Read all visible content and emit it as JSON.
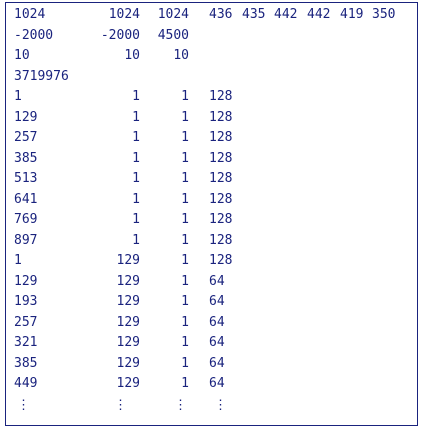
{
  "header": {
    "row1": [
      "1024",
      "1024",
      "1024",
      "436",
      "435",
      "442",
      "442",
      "419",
      "350"
    ],
    "row2": [
      "-2000",
      "-2000",
      "4500"
    ],
    "row3": [
      "10",
      "10",
      "10"
    ],
    "row4": "3719976"
  },
  "rows": [
    [
      "1",
      "1",
      "1",
      "128"
    ],
    [
      "129",
      "1",
      "1",
      "128"
    ],
    [
      "257",
      "1",
      "1",
      "128"
    ],
    [
      "385",
      "1",
      "1",
      "128"
    ],
    [
      "513",
      "1",
      "1",
      "128"
    ],
    [
      "641",
      "1",
      "1",
      "128"
    ],
    [
      "769",
      "1",
      "1",
      "128"
    ],
    [
      "897",
      "1",
      "1",
      "128"
    ],
    [
      "1",
      "129",
      "1",
      "128"
    ],
    [
      "129",
      "129",
      "1",
      "64"
    ],
    [
      "193",
      "129",
      "1",
      "64"
    ],
    [
      "257",
      "129",
      "1",
      "64"
    ],
    [
      "321",
      "129",
      "1",
      "64"
    ],
    [
      "385",
      "129",
      "1",
      "64"
    ],
    [
      "449",
      "129",
      "1",
      "64"
    ]
  ],
  "ellipsis": [
    "⋮",
    "⋮",
    "⋮",
    "⋮"
  ],
  "colors": {
    "text": "#1a237e",
    "border": "#1a237e"
  }
}
